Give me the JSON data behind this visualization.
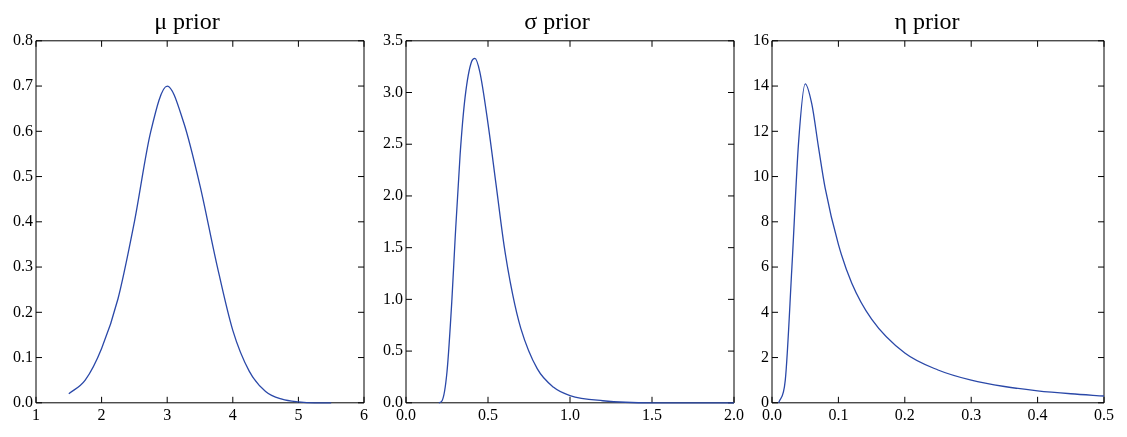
{
  "chart_data": [
    {
      "type": "line",
      "title": "μ prior",
      "x": [
        1.5,
        1.75,
        2,
        2.25,
        2.5,
        2.75,
        3,
        3.25,
        3.5,
        3.75,
        4,
        4.25,
        4.5,
        4.75,
        5,
        5.25,
        5.5
      ],
      "series": [
        {
          "color": "#2a48a8",
          "values": [
            0.02,
            0.05,
            0.12,
            0.23,
            0.4,
            0.6,
            0.7,
            0.62,
            0.48,
            0.31,
            0.16,
            0.07,
            0.025,
            0.008,
            0.002,
            0.0,
            0.0
          ]
        }
      ],
      "xlim": [
        1,
        6
      ],
      "xticks": [
        1,
        2,
        3,
        4,
        5,
        6
      ],
      "ylim": [
        0,
        0.8
      ],
      "yticks": [
        {
          "value": 0,
          "label": "0.0"
        },
        0.1,
        0.2,
        0.3,
        0.4,
        0.5,
        0.6,
        0.7,
        0.8
      ],
      "grid": false,
      "legend": false,
      "marker": "none",
      "line_style": "solid"
    },
    {
      "type": "line",
      "title": "σ prior",
      "x": [
        0.2,
        0.22,
        0.25,
        0.28,
        0.3,
        0.33,
        0.36,
        0.4,
        0.42,
        0.45,
        0.5,
        0.55,
        0.6,
        0.65,
        0.7,
        0.8,
        0.9,
        1.0,
        1.2,
        1.5,
        2.0
      ],
      "series": [
        {
          "color": "#2a48a8",
          "values": [
            0,
            0.02,
            0.3,
            1.0,
            1.6,
            2.4,
            2.95,
            3.3,
            3.33,
            3.2,
            2.7,
            2.1,
            1.5,
            1.05,
            0.72,
            0.33,
            0.15,
            0.07,
            0.02,
            0.0,
            0
          ]
        }
      ],
      "xlim": [
        0,
        2
      ],
      "xticks": [
        {
          "value": 0,
          "label": "0.0"
        },
        0.5,
        {
          "value": 1,
          "label": "1.0"
        },
        1.5,
        {
          "value": 2,
          "label": "2.0"
        }
      ],
      "ylim": [
        0,
        3.5
      ],
      "yticks": [
        {
          "value": 0,
          "label": "0.0"
        },
        0.5,
        {
          "value": 1,
          "label": "1.0"
        },
        1.5,
        {
          "value": 2,
          "label": "2.0"
        },
        2.5,
        {
          "value": 3,
          "label": "3.0"
        },
        3.5
      ],
      "grid": false,
      "legend": false,
      "marker": "none",
      "line_style": "solid"
    },
    {
      "type": "line",
      "title": "η prior",
      "x": [
        0.01,
        0.02,
        0.03,
        0.04,
        0.05,
        0.06,
        0.07,
        0.08,
        0.1,
        0.12,
        0.15,
        0.2,
        0.25,
        0.3,
        0.35,
        0.4,
        0.45,
        0.5
      ],
      "series": [
        {
          "color": "#2a48a8",
          "values": [
            0,
            1.0,
            6,
            11.5,
            14.1,
            13.2,
            11.3,
            9.5,
            7.0,
            5.3,
            3.7,
            2.2,
            1.45,
            1.0,
            0.72,
            0.53,
            0.4,
            0.3
          ]
        }
      ],
      "xlim": [
        0,
        0.5
      ],
      "xticks": [
        {
          "value": 0,
          "label": "0.0"
        },
        0.1,
        0.2,
        0.3,
        0.4,
        0.5
      ],
      "ylim": [
        0,
        16
      ],
      "yticks": [
        0,
        2,
        4,
        6,
        8,
        10,
        12,
        14,
        16
      ],
      "grid": false,
      "legend": false,
      "marker": "none",
      "line_style": "solid"
    }
  ]
}
